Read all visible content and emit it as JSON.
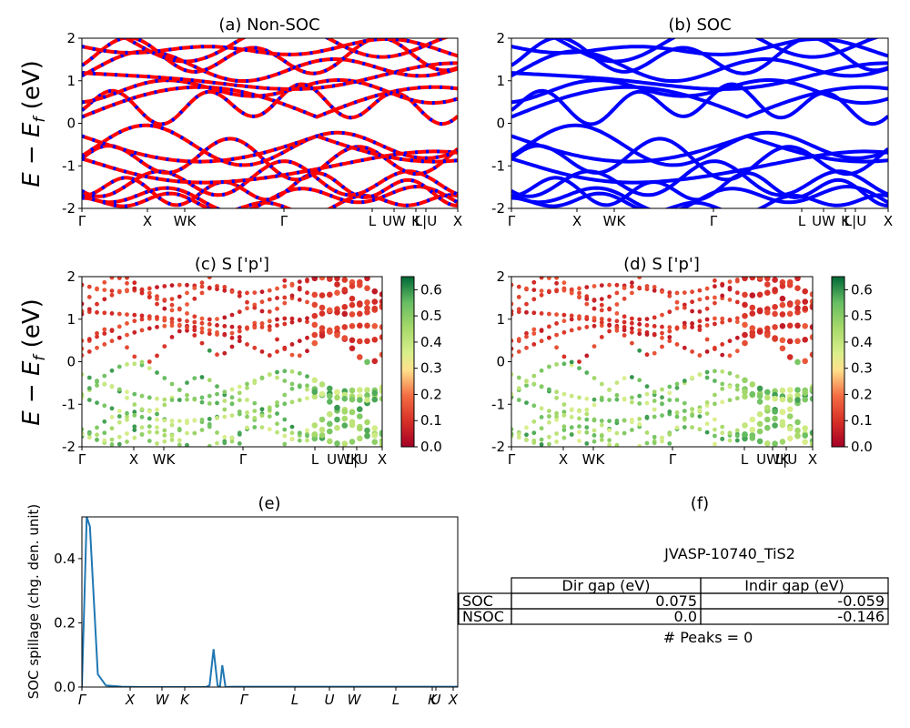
{
  "chart_data": [
    {
      "panel": "a",
      "type": "line",
      "title": "(a) Non-SOC",
      "ylabel": "E − E_f (eV)",
      "ylim": [
        -2,
        2
      ],
      "yticks": [
        -2,
        -1,
        0,
        1,
        2
      ],
      "kpath_labels": [
        "Γ",
        "X",
        "WK",
        "Γ",
        "L",
        "UW",
        "K",
        "L|U",
        "X"
      ],
      "series_colors": [
        "#ff0000",
        "#0000ff"
      ],
      "style": "dashed red/blue band lines"
    },
    {
      "panel": "b",
      "type": "line",
      "title": "(b) SOC",
      "ylim": [
        -2,
        2
      ],
      "yticks": [
        -2,
        -1,
        0,
        1,
        2
      ],
      "kpath_labels": [
        "Γ",
        "X",
        "WK",
        "Γ",
        "L",
        "UW",
        "K",
        "L|U",
        "X"
      ],
      "series_colors": [
        "#0000ff"
      ]
    },
    {
      "panel": "c",
      "type": "scatter",
      "title": "(c)  S ['p']",
      "ylabel": "E − E_f (eV)",
      "ylim": [
        -2,
        2
      ],
      "yticks": [
        -2,
        -1,
        0,
        1,
        2
      ],
      "kpath_labels": [
        "Γ",
        "X",
        "WK",
        "Γ",
        "L",
        "UWK",
        "L|U",
        "X"
      ],
      "colorbar": {
        "min": 0.0,
        "max": 0.65,
        "ticks": [
          "0.0",
          "0.1",
          "0.2",
          "0.3",
          "0.4",
          "0.5",
          "0.6"
        ],
        "cmap": "RdYlGn"
      }
    },
    {
      "panel": "d",
      "type": "scatter",
      "title": "(d) S ['p']",
      "ylim": [
        -2,
        2
      ],
      "yticks": [
        -2,
        -1,
        0,
        1,
        2
      ],
      "kpath_labels": [
        "Γ",
        "X",
        "WK",
        "Γ",
        "L",
        "UWK",
        "L|U",
        "X"
      ],
      "colorbar": {
        "min": 0.0,
        "max": 0.65,
        "ticks": [
          "0.0",
          "0.1",
          "0.2",
          "0.3",
          "0.4",
          "0.5",
          "0.6"
        ],
        "cmap": "RdYlGn"
      }
    },
    {
      "panel": "e",
      "type": "line",
      "title": "(e)",
      "ylabel": "SOC spillage (chg. den. unit)",
      "ylim": [
        0,
        0.53
      ],
      "yticks": [
        "0.0",
        "0.2",
        "0.4"
      ],
      "xtick_labels": [
        "Γ",
        "X",
        "W",
        "K",
        "Γ",
        "L",
        "U",
        "W",
        "L",
        "K",
        "U",
        "X"
      ],
      "x": [
        0,
        0.6,
        1.0,
        2.0,
        3.0,
        5.0,
        8.0,
        10.0,
        12.0,
        14.0,
        15.0,
        15.5,
        16.0,
        16.5,
        17.0,
        17.3,
        17.6,
        18.0,
        19.0,
        22.0,
        26.0,
        30.0,
        34.0,
        40.0,
        45.0,
        47.1
      ],
      "values": [
        0.0,
        0.53,
        0.5,
        0.04,
        0.005,
        0.001,
        0.0,
        0.0,
        0.0,
        0.0,
        0.0,
        0.0,
        0.005,
        0.118,
        0.005,
        0.0,
        0.068,
        0.0,
        0.001,
        0.001,
        0.001,
        0.001,
        0.001,
        0.001,
        0.001,
        0.001
      ],
      "color": "#1f77b4"
    }
  ],
  "info_panel": {
    "title": "(f)",
    "material": "JVASP-10740_TiS2",
    "table": {
      "headers": [
        "Dir gap (eV)",
        "Indir gap (eV)"
      ],
      "rows": [
        {
          "label": "SOC",
          "dir": "0.075",
          "indir": "-0.059"
        },
        {
          "label": "NSOC",
          "dir": "0.0",
          "indir": "-0.146"
        }
      ]
    },
    "peaks": "# Peaks = 0"
  }
}
